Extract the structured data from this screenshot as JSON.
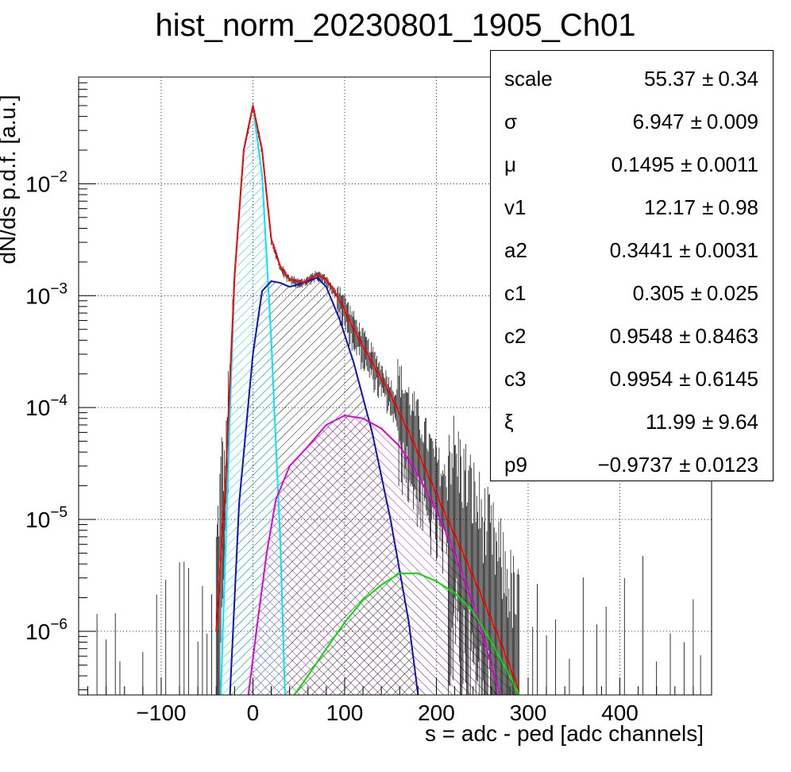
{
  "title": "hist_norm_20230801_1905_Ch01",
  "chart_data": {
    "type": "line",
    "title": "hist_norm_20230801_1905_Ch01",
    "xlabel": "s = adc - ped [adc channels]",
    "ylabel": "dN/ds p.d.f. [a.u.]",
    "xlim": [
      -190,
      500
    ],
    "ylim": [
      2.7e-07,
      0.09
    ],
    "yscale": "log",
    "grid": true,
    "x_ticks": [
      "-100",
      "0",
      "100",
      "200",
      "300",
      "400"
    ],
    "x_tick_values": [
      -100,
      0,
      100,
      200,
      300,
      400
    ],
    "y_ticks": [
      "10^-6",
      "10^-5",
      "10^-4",
      "10^-3",
      "10^-2"
    ],
    "y_tick_values": [
      1e-06,
      1e-05,
      0.0001,
      0.001,
      0.01
    ],
    "colors": {
      "total": "#ff0000",
      "peak0": "#00e5ff",
      "component1": "#1010c0",
      "component2": "#e000e0",
      "component3": "#00e000",
      "data": "#000000"
    },
    "series": [
      {
        "color": "red",
        "x": [
          -40,
          -30,
          -20,
          -10,
          0,
          10,
          20,
          30,
          40,
          55,
          70,
          80,
          95,
          110,
          130,
          150,
          170,
          190,
          210,
          230,
          250,
          270,
          290
        ],
        "values": [
          1e-06,
          2e-05,
          0.0015,
          0.02,
          0.05,
          0.02,
          0.0032,
          0.0018,
          0.0014,
          0.0013,
          0.00155,
          0.0014,
          0.0009,
          0.0005,
          0.00025,
          0.00013,
          6e-05,
          2.6e-05,
          1.1e-05,
          4.8e-06,
          2e-06,
          8e-07,
          3e-07
        ]
      },
      {
        "color": "cyan",
        "x": [
          -35,
          -30,
          -20,
          -10,
          0,
          10,
          20,
          30,
          35
        ],
        "values": [
          2.7e-07,
          5e-06,
          0.0015,
          0.02,
          0.05,
          0.012,
          0.0004,
          6e-06,
          2.7e-07
        ]
      },
      {
        "color": "blue",
        "x": [
          -25,
          -15,
          0,
          10,
          20,
          30,
          40,
          55,
          70,
          80,
          95,
          110,
          130,
          150,
          170,
          180
        ],
        "values": [
          2.7e-07,
          1.4e-05,
          0.0003,
          0.0011,
          0.00135,
          0.0013,
          0.0012,
          0.0013,
          0.00145,
          0.0012,
          0.0006,
          0.00025,
          6e-05,
          1e-05,
          1.2e-06,
          2.7e-07
        ]
      },
      {
        "color": "magenta",
        "x": [
          -5,
          5,
          15,
          25,
          40,
          60,
          80,
          100,
          120,
          140,
          160,
          180,
          200,
          220,
          240,
          260,
          270
        ],
        "values": [
          2.7e-07,
          1.2e-06,
          5e-06,
          1.5e-05,
          3e-05,
          4.5e-05,
          7e-05,
          8.5e-05,
          8e-05,
          6.5e-05,
          4.5e-05,
          2.5e-05,
          1.2e-05,
          5e-06,
          1.8e-06,
          5e-07,
          2.7e-07
        ]
      },
      {
        "color": "green",
        "x": [
          45,
          60,
          80,
          100,
          120,
          140,
          160,
          180,
          200,
          220,
          240,
          260,
          280,
          290
        ],
        "values": [
          2.7e-07,
          4e-07,
          7e-07,
          1.2e-06,
          1.9e-06,
          2.6e-06,
          3.3e-06,
          3.3e-06,
          2.8e-06,
          2.2e-06,
          1.5e-06,
          8e-07,
          4e-07,
          2.7e-07
        ]
      }
    ]
  },
  "stats": [
    {
      "name": "scale",
      "value": "55.37",
      "pm": "±",
      "err": "0.34"
    },
    {
      "name": "σ",
      "value": "6.947",
      "pm": "±",
      "err": "0.009"
    },
    {
      "name": "μ",
      "value": "0.1495",
      "pm": "±",
      "err": "0.0011"
    },
    {
      "name": "v1",
      "value": "12.17",
      "pm": "±",
      "err": "0.98"
    },
    {
      "name": "a2",
      "value": "0.3441",
      "pm": "±",
      "err": "0.0031"
    },
    {
      "name": "c1",
      "value": "0.305",
      "pm": "±",
      "err": "0.025"
    },
    {
      "name": "c2",
      "value": "0.9548",
      "pm": "±",
      "err": "0.8463"
    },
    {
      "name": "c3",
      "value": "0.9954",
      "pm": "±",
      "err": "0.6145"
    },
    {
      "name": "ξ",
      "value": "11.99",
      "pm": "±",
      "err": "9.64"
    },
    {
      "name": "p9",
      "value": "−0.9737",
      "pm": "±",
      "err": "0.0123"
    }
  ]
}
